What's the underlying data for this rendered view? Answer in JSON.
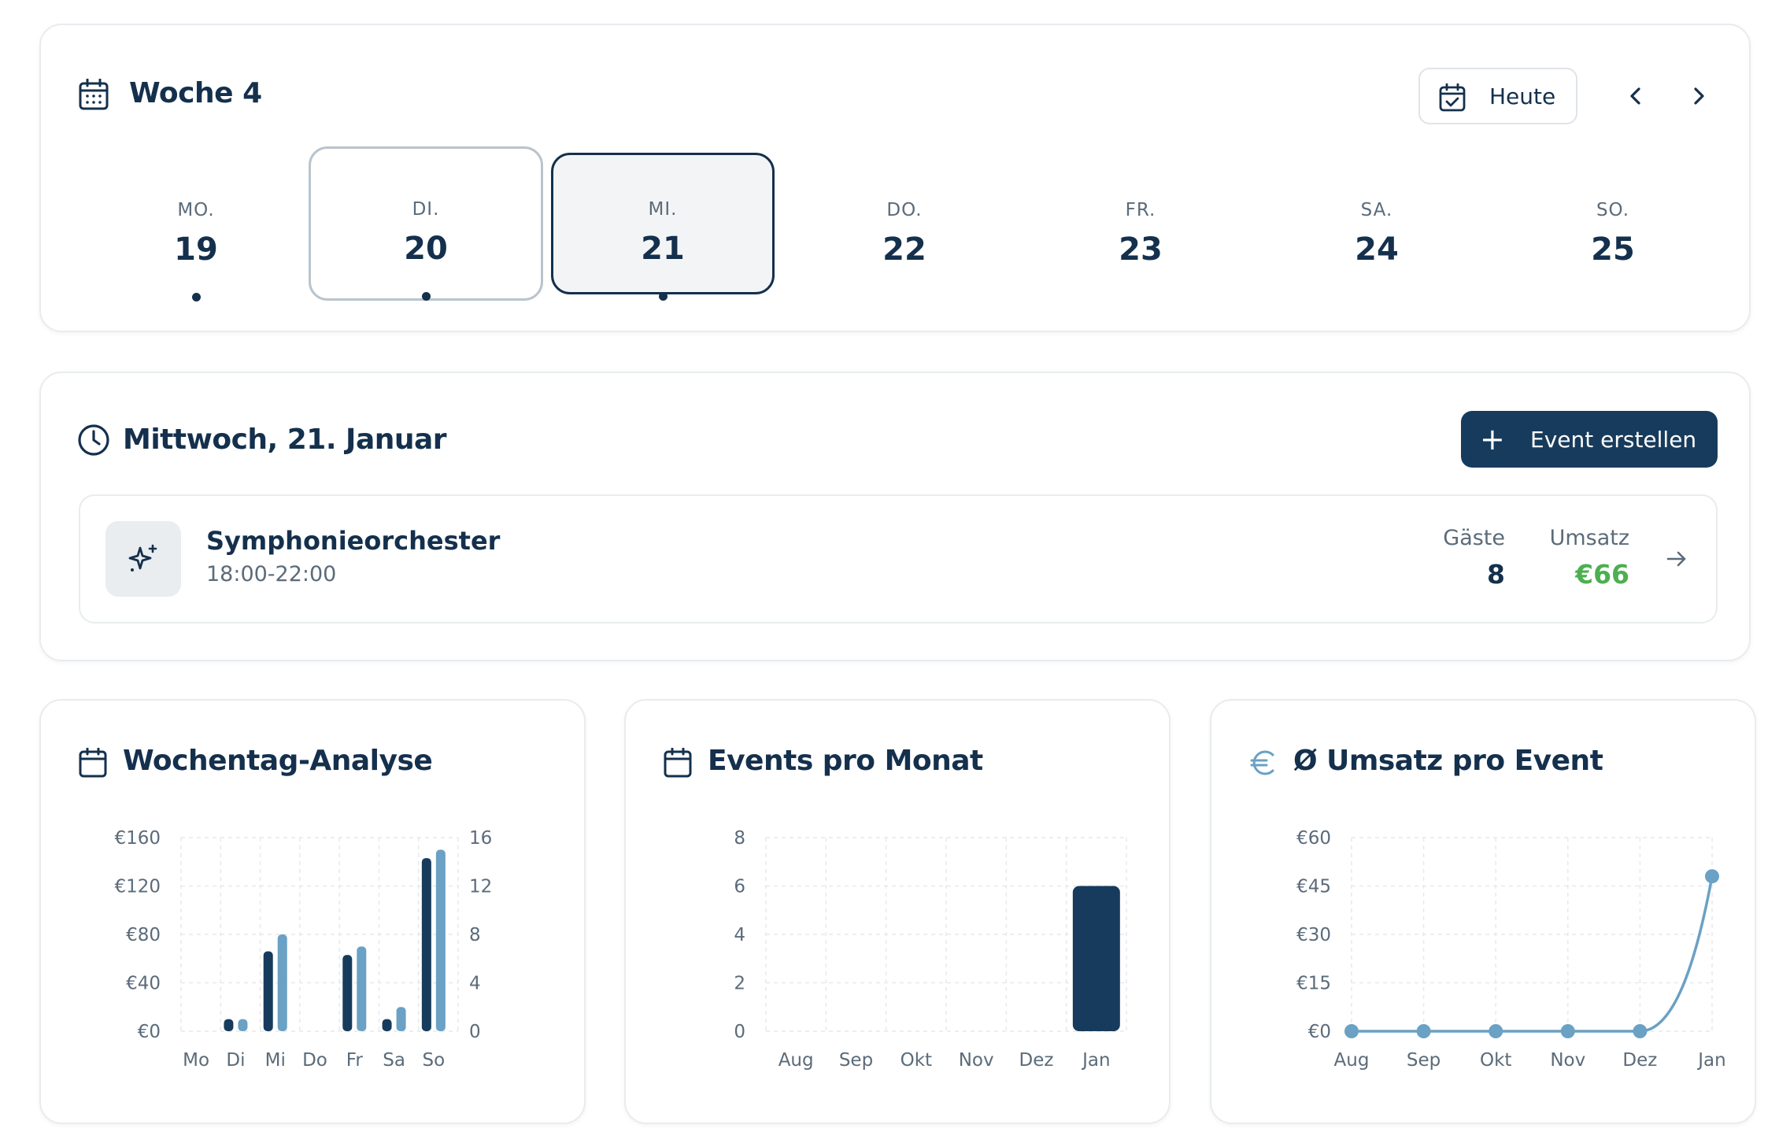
{
  "week": {
    "title": "Woche 4",
    "today_label": "Heute",
    "days": [
      {
        "dow": "MO.",
        "num": "19",
        "has_event": true,
        "state": "normal"
      },
      {
        "dow": "DI.",
        "num": "20",
        "has_event": true,
        "state": "today"
      },
      {
        "dow": "MI.",
        "num": "21",
        "has_event": true,
        "state": "selected"
      },
      {
        "dow": "DO.",
        "num": "22",
        "has_event": false,
        "state": "normal"
      },
      {
        "dow": "FR.",
        "num": "23",
        "has_event": false,
        "state": "normal"
      },
      {
        "dow": "SA.",
        "num": "24",
        "has_event": false,
        "state": "normal"
      },
      {
        "dow": "SO.",
        "num": "25",
        "has_event": false,
        "state": "normal"
      }
    ]
  },
  "day_detail": {
    "title": "Mittwoch, 21. Januar",
    "create_button": "Event erstellen",
    "create_plus": "+",
    "event": {
      "name": "Symphonieorchester",
      "time": "18:00-22:00",
      "guests_label": "Gäste",
      "guests_value": "8",
      "revenue_label": "Umsatz",
      "revenue_value": "€66"
    }
  },
  "colors": {
    "primary": "#173b5c",
    "secondary": "#6aa1c4",
    "revenue_green": "#4caf50",
    "text": "#14304d",
    "muted": "#5b6b7a"
  },
  "chart_data": [
    {
      "type": "bar",
      "title": "Wochentag-Analyse",
      "categories": [
        "Mo",
        "Di",
        "Mi",
        "Do",
        "Fr",
        "Sa",
        "So"
      ],
      "y_left_ticks": [
        "€0",
        "€40",
        "€80",
        "€120",
        "€160"
      ],
      "y_right_ticks": [
        "0",
        "4",
        "8",
        "12",
        "16"
      ],
      "ylim_left": [
        0,
        160
      ],
      "ylim_right": [
        0,
        16
      ],
      "grid": true,
      "series": [
        {
          "axis": "left",
          "color": "#173b5c",
          "values": [
            0,
            10,
            66,
            0,
            63,
            10,
            143
          ]
        },
        {
          "axis": "right",
          "color": "#6aa1c4",
          "values": [
            0,
            1,
            8,
            0,
            7,
            2,
            15
          ]
        }
      ]
    },
    {
      "type": "bar",
      "title": "Events pro Monat",
      "categories": [
        "Aug",
        "Sep",
        "Okt",
        "Nov",
        "Dez",
        "Jan"
      ],
      "y_ticks": [
        "0",
        "2",
        "4",
        "6",
        "8"
      ],
      "ylim": [
        0,
        8
      ],
      "grid": true,
      "series": [
        {
          "color": "#173b5c",
          "values": [
            0,
            0,
            0,
            0,
            0,
            6
          ]
        }
      ]
    },
    {
      "type": "line",
      "title": "Ø Umsatz pro Event",
      "categories": [
        "Aug",
        "Sep",
        "Okt",
        "Nov",
        "Dez",
        "Jan"
      ],
      "y_ticks": [
        "€0",
        "€15",
        "€30",
        "€45",
        "€60"
      ],
      "ylim": [
        0,
        60
      ],
      "grid": true,
      "series": [
        {
          "color": "#6aa1c4",
          "values": [
            0,
            0,
            0,
            0,
            0,
            48
          ]
        }
      ]
    }
  ]
}
